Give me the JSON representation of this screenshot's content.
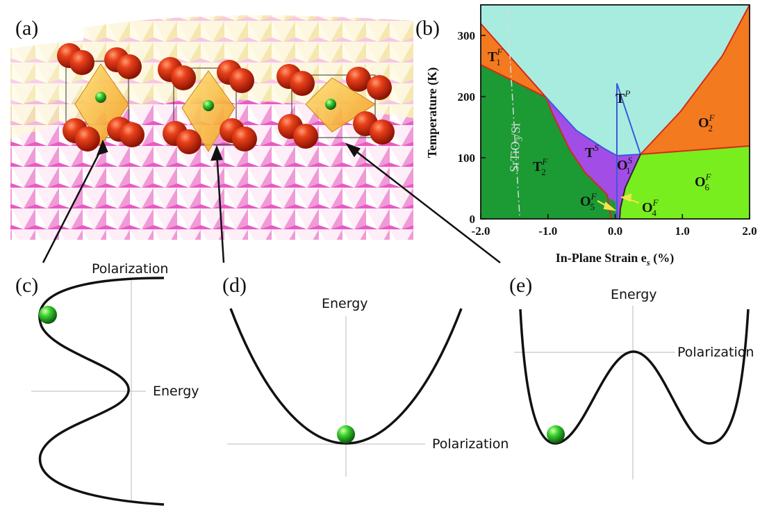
{
  "panels": {
    "a": "(a)",
    "b": "(b)",
    "c": "(c)",
    "d": "(d)",
    "e": "(e)"
  },
  "phase_diagram": {
    "ylabel": "Temperature (K)",
    "xlabel": "In-Plane Strain e",
    "xlabel_sub": "s",
    "xlabel_unit": "(%)",
    "x_ticks": [
      "-2.0",
      "-1.0",
      "0.0",
      "1.0",
      "2.0"
    ],
    "y_ticks": [
      "0",
      "100",
      "200",
      "300"
    ],
    "substrate_label": "SrTiO",
    "substrate_sub": "3",
    "substrate_tail": "/Si",
    "colors": {
      "paraelectric": "#a8ece0",
      "orthorhombic_F": "#f47a1f",
      "tetragonal_F": "#1c9a34",
      "tetragonal_S": "#a24de6",
      "orthorhombic_F6": "#78ee1e"
    },
    "phases": [
      {
        "id": "T1F",
        "main": "T",
        "sub": "1",
        "sup": "F"
      },
      {
        "id": "TP",
        "main": "T",
        "sub": "",
        "sup": "P"
      },
      {
        "id": "O2F",
        "main": "O",
        "sub": "2",
        "sup": "F"
      },
      {
        "id": "T2F",
        "main": "T",
        "sub": "2",
        "sup": "F"
      },
      {
        "id": "TS",
        "main": "T",
        "sub": "",
        "sup": "S"
      },
      {
        "id": "O1S",
        "main": "O",
        "sub": "1",
        "sup": "S"
      },
      {
        "id": "O6F",
        "main": "O",
        "sub": "6",
        "sup": "F"
      },
      {
        "id": "O5F",
        "main": "O",
        "sub": "5",
        "sup": "F"
      },
      {
        "id": "O4F",
        "main": "O",
        "sub": "4",
        "sup": "F"
      }
    ]
  },
  "potentials": {
    "c": {
      "vertical": "Polarization",
      "horizontal": "Energy"
    },
    "d": {
      "vertical": "Energy",
      "horizontal": "Polarization"
    },
    "e": {
      "vertical": "Energy",
      "horizontal": "Polarization"
    }
  }
}
